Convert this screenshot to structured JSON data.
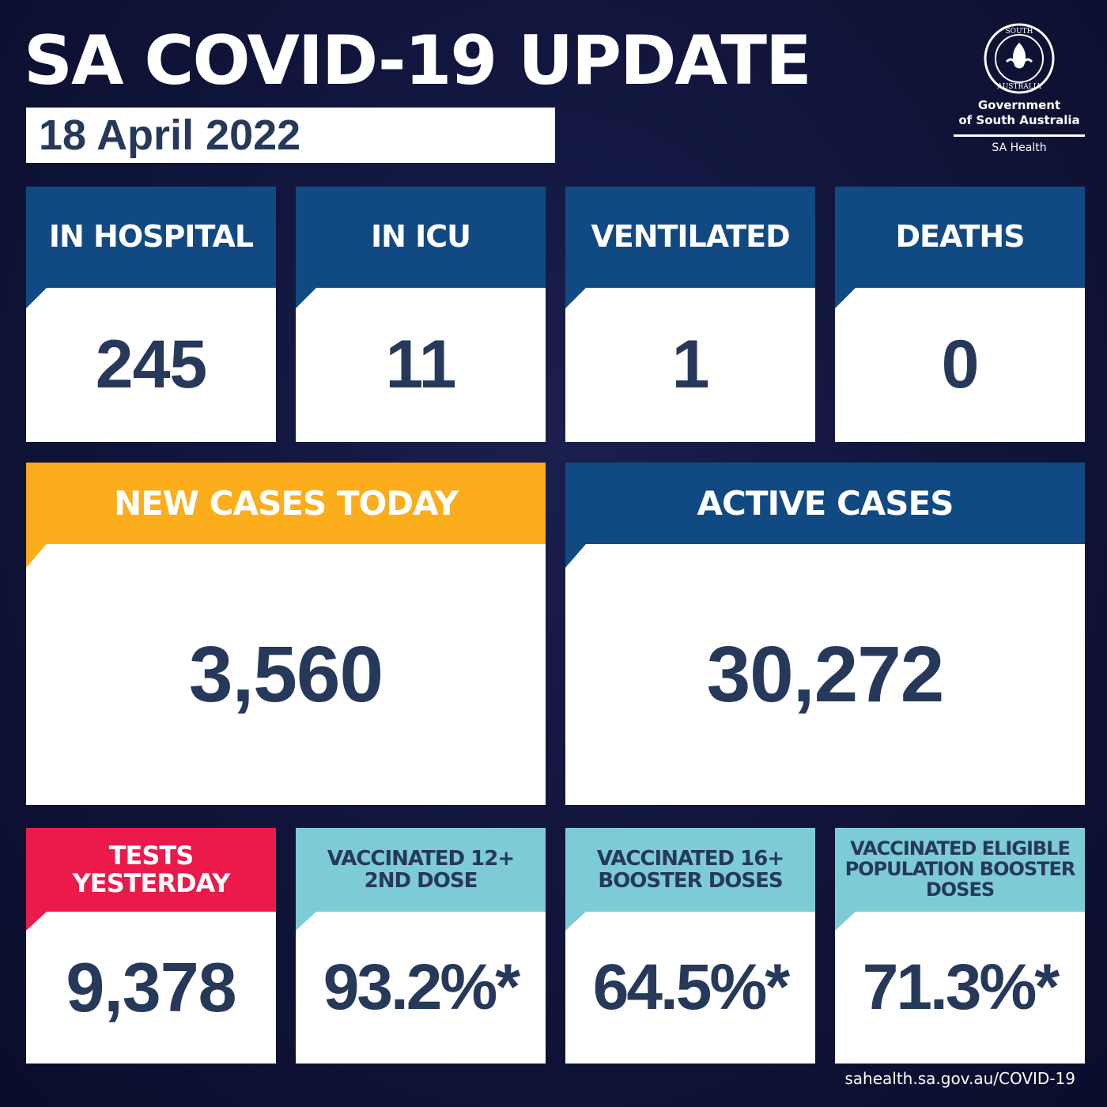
{
  "title": "SA COVID-19 UPDATE",
  "date": "18 April 2022",
  "government": {
    "line1": "Government",
    "line2": "of South Australia",
    "line3": "SA Health",
    "seal_icon": "south-australia-seal-icon"
  },
  "colors": {
    "navy": "#114a82",
    "orange": "#fbad1c",
    "red": "#eb1a4b",
    "light_blue": "#7dcbd6",
    "value_text": "#26395a",
    "background": "#10143a"
  },
  "stats_top": [
    {
      "label": "IN HOSPITAL",
      "value": "245"
    },
    {
      "label": "IN ICU",
      "value": "11"
    },
    {
      "label": "VENTILATED",
      "value": "1"
    },
    {
      "label": "DEATHS",
      "value": "0"
    }
  ],
  "stats_mid": [
    {
      "label": "NEW CASES TODAY",
      "value": "3,560"
    },
    {
      "label": "ACTIVE CASES",
      "value": "30,272"
    }
  ],
  "stats_bottom": [
    {
      "label": "TESTS YESTERDAY",
      "value": "9,378"
    },
    {
      "label": "VACCINATED 12+ 2ND DOSE",
      "value": "93.2%*"
    },
    {
      "label": "VACCINATED 16+ BOOSTER DOSES",
      "value": "64.5%*"
    },
    {
      "label": "VACCINATED ELIGIBLE POPULATION BOOSTER DOSES",
      "value": "71.3%*"
    }
  ],
  "footer": "sahealth.sa.gov.au/COVID-19"
}
